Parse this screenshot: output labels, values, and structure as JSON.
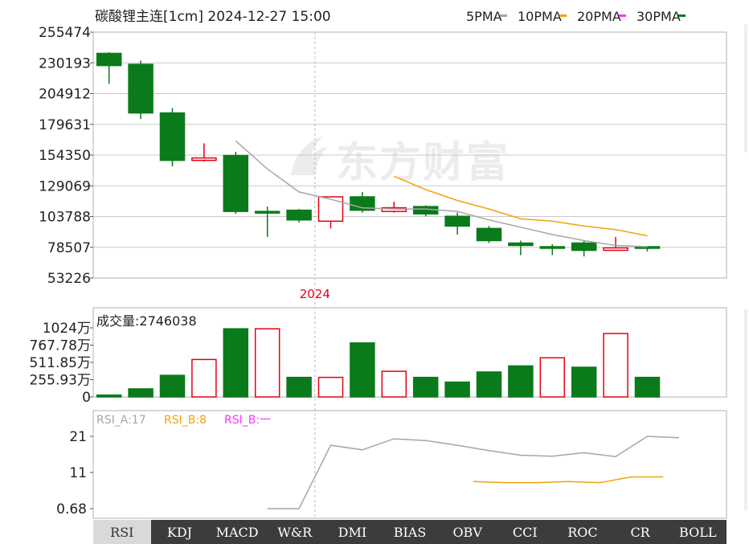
{
  "header": {
    "title": "碳酸锂主连[1cm] 2024-12-27 15:00",
    "ma_legend": [
      {
        "label": "5PMA",
        "color": "#a6a6a6"
      },
      {
        "label": "10PMA",
        "color": "#f0a30a"
      },
      {
        "label": "20PMA",
        "color": "#ff33ff"
      },
      {
        "label": "30PMA",
        "color": "#0a7a1a"
      }
    ]
  },
  "colors": {
    "up": "#e60012",
    "down": "#0a7a1a",
    "grid": "#c8c8c8",
    "ma5": "#a6a6a6",
    "ma10": "#f0a30a",
    "rsiA": "#a6a6a6",
    "rsiB": "#f0a30a"
  },
  "chart_data": [
    {
      "type": "candlestick",
      "y_ticks": [
        "255474",
        "230193",
        "204912",
        "179631",
        "154350",
        "129069",
        "103788",
        "78507",
        "53226"
      ],
      "ylim": [
        53226,
        255474
      ],
      "x_marker_label": "2024",
      "x_marker_index": 6.5,
      "candles": [
        {
          "open": 238000,
          "high": 239000,
          "low": 213000,
          "close": 228000
        },
        {
          "open": 229000,
          "high": 232000,
          "low": 184000,
          "close": 189000
        },
        {
          "open": 189000,
          "high": 193000,
          "low": 145000,
          "close": 150000
        },
        {
          "open": 150000,
          "high": 164000,
          "low": 149000,
          "close": 152000
        },
        {
          "open": 154000,
          "high": 157000,
          "low": 106000,
          "close": 108000
        },
        {
          "open": 108000,
          "high": 112000,
          "low": 87000,
          "close": 108000
        },
        {
          "open": 109000,
          "high": 110000,
          "low": 99000,
          "close": 101000
        },
        {
          "open": 100000,
          "high": 120000,
          "low": 94000,
          "close": 120000
        },
        {
          "open": 120000,
          "high": 124000,
          "low": 107000,
          "close": 109000
        },
        {
          "open": 108000,
          "high": 116000,
          "low": 107000,
          "close": 111000
        },
        {
          "open": 112000,
          "high": 113000,
          "low": 104000,
          "close": 106000
        },
        {
          "open": 104000,
          "high": 107000,
          "low": 89000,
          "close": 96000
        },
        {
          "open": 94000,
          "high": 96000,
          "low": 82000,
          "close": 84000
        },
        {
          "open": 82000,
          "high": 84000,
          "low": 72000,
          "close": 80000
        },
        {
          "open": 79000,
          "high": 81000,
          "low": 72000,
          "close": 79000
        },
        {
          "open": 82000,
          "high": 84000,
          "low": 71000,
          "close": 76000
        },
        {
          "open": 76000,
          "high": 87000,
          "low": 76000,
          "close": 78000
        },
        {
          "open": 79000,
          "high": 79000,
          "low": 75000,
          "close": 78000
        }
      ],
      "ma5": [
        {
          "i": 4,
          "v": 166000
        },
        {
          "i": 5,
          "v": 143000
        },
        {
          "i": 6,
          "v": 124000
        },
        {
          "i": 7,
          "v": 118000
        },
        {
          "i": 8,
          "v": 111000
        },
        {
          "i": 9,
          "v": 110000
        },
        {
          "i": 10,
          "v": 110000
        },
        {
          "i": 11,
          "v": 108000
        },
        {
          "i": 12,
          "v": 101000
        },
        {
          "i": 13,
          "v": 95000
        },
        {
          "i": 14,
          "v": 89000
        },
        {
          "i": 15,
          "v": 84000
        },
        {
          "i": 16,
          "v": 80000
        },
        {
          "i": 17,
          "v": 79000
        }
      ],
      "ma10": [
        {
          "i": 9,
          "v": 137000
        },
        {
          "i": 10,
          "v": 126000
        },
        {
          "i": 11,
          "v": 117000
        },
        {
          "i": 12,
          "v": 110000
        },
        {
          "i": 13,
          "v": 102000
        },
        {
          "i": 14,
          "v": 100000
        },
        {
          "i": 15,
          "v": 96000
        },
        {
          "i": 16,
          "v": 93000
        },
        {
          "i": 17,
          "v": 88000
        }
      ]
    },
    {
      "type": "bar",
      "label": "成交量:2746038",
      "y_ticks": [
        "1024万",
        "767.78万",
        "511.85万",
        "255.93万",
        "0"
      ],
      "ylim": [
        0,
        1024
      ],
      "values": [
        28,
        120,
        320,
        555,
        1010,
        1010,
        290,
        290,
        800,
        380,
        290,
        220,
        370,
        460,
        580,
        440,
        940,
        290
      ],
      "up": [
        false,
        false,
        false,
        true,
        false,
        true,
        false,
        true,
        false,
        true,
        false,
        false,
        false,
        false,
        true,
        false,
        true,
        false
      ]
    },
    {
      "type": "line",
      "legend": [
        {
          "label": "RSI_A:17",
          "color": "#a6a6a6"
        },
        {
          "label": "RSI_B:8",
          "color": "#f0a30a"
        },
        {
          "label": "RSI_B:一",
          "color": "#ff33ff"
        }
      ],
      "y_ticks": [
        "21",
        "11",
        "0.68"
      ],
      "ylim": [
        0.68,
        21
      ],
      "series": [
        {
          "name": "RSI_A:17",
          "points": [
            {
              "i": 5,
              "v": 0.68
            },
            {
              "i": 6,
              "v": 0.68
            },
            {
              "i": 7,
              "v": 18.5
            },
            {
              "i": 8,
              "v": 17.2
            },
            {
              "i": 9,
              "v": 20.3
            },
            {
              "i": 10,
              "v": 19.8
            },
            {
              "i": 11,
              "v": 18.5
            },
            {
              "i": 12,
              "v": 17.0
            },
            {
              "i": 13,
              "v": 15.7
            },
            {
              "i": 14,
              "v": 15.4
            },
            {
              "i": 15,
              "v": 16.4
            },
            {
              "i": 16,
              "v": 15.3
            },
            {
              "i": 17,
              "v": 21.0
            },
            {
              "i": 18,
              "v": 20.6
            }
          ]
        },
        {
          "name": "RSI_B:8",
          "points": [
            {
              "i": 11.5,
              "v": 8.3
            },
            {
              "i": 12.5,
              "v": 8.0
            },
            {
              "i": 13.5,
              "v": 8.0
            },
            {
              "i": 14.5,
              "v": 8.3
            },
            {
              "i": 15.5,
              "v": 8.0
            },
            {
              "i": 16.5,
              "v": 9.6
            },
            {
              "i": 17.5,
              "v": 9.6
            }
          ]
        }
      ]
    }
  ],
  "indicator_tabs": [
    "RSI",
    "KDJ",
    "MACD",
    "W&R",
    "DMI",
    "BIAS",
    "OBV",
    "CCI",
    "ROC",
    "CR",
    "BOLL"
  ],
  "active_tab": "RSI",
  "watermark": "东方财富"
}
